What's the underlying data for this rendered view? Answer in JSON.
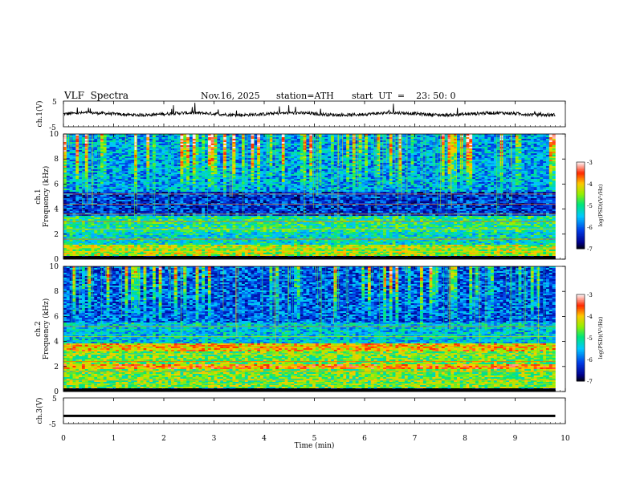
{
  "header": {
    "title": "VLF  Spectra",
    "date": "Nov.16, 2025",
    "station": "station=ATH",
    "start": "start  UT  =    23: 50: 0"
  },
  "chart_data": [
    {
      "type": "line",
      "panel": "ch1-waveform",
      "ylabel": "ch.1(V)",
      "ylim": [
        -5,
        5
      ],
      "xlim": [
        0,
        9.8
      ],
      "yticks": [
        "5",
        "-5"
      ],
      "baseline": 0.0,
      "noise_amplitude": 0.6,
      "spikes_up_to": 3.5
    },
    {
      "type": "heatmap",
      "panel": "ch1-spectrogram",
      "ylabel": "ch.1\nFrequency (kHz)",
      "ylim": [
        0,
        10
      ],
      "yticks": [
        "0",
        "2",
        "4",
        "6",
        "8",
        "10"
      ],
      "xlim": [
        0,
        9.8
      ],
      "colorbar": {
        "label": "log(PSD)(V²/Hz)",
        "range": [
          -7,
          -3
        ],
        "ticks": [
          "-3",
          "-4",
          "-5",
          "-6",
          "-7"
        ]
      },
      "bands_khz": [
        {
          "range": [
            0,
            0.2
          ],
          "level": -7
        },
        {
          "range": [
            0.2,
            1.2
          ],
          "level": -4.4
        },
        {
          "range": [
            1.2,
            2.2
          ],
          "level": -5.2
        },
        {
          "range": [
            2.2,
            3.4
          ],
          "level": -5.0
        },
        {
          "range": [
            3.4,
            5.4
          ],
          "level": -6.2
        },
        {
          "range": [
            5.4,
            10
          ],
          "level": -5.6
        }
      ]
    },
    {
      "type": "heatmap",
      "panel": "ch2-spectrogram",
      "ylabel": "ch.2\nFrequency (kHz)",
      "ylim": [
        0,
        10
      ],
      "yticks": [
        "0",
        "2",
        "4",
        "6",
        "8",
        "10"
      ],
      "xlim": [
        0,
        9.8
      ],
      "colorbar": {
        "label": "log(PSD)(V²/Hz)",
        "range": [
          -7,
          -3
        ],
        "ticks": [
          "-3",
          "-4",
          "-5",
          "-6",
          "-7"
        ]
      },
      "bands_khz": [
        {
          "range": [
            0,
            0.2
          ],
          "level": -7
        },
        {
          "range": [
            0.2,
            1.8
          ],
          "level": -4.6
        },
        {
          "range": [
            1.8,
            2.2
          ],
          "level": -3.8
        },
        {
          "range": [
            2.2,
            3.2
          ],
          "level": -4.6
        },
        {
          "range": [
            3.2,
            3.8
          ],
          "level": -4.0
        },
        {
          "range": [
            3.8,
            5.5
          ],
          "level": -5.4
        },
        {
          "range": [
            5.5,
            10
          ],
          "level": -6.0
        }
      ]
    },
    {
      "type": "line",
      "panel": "ch3-waveform",
      "ylabel": "ch.3(V)",
      "ylim": [
        -5,
        5
      ],
      "xlim": [
        0,
        9.8
      ],
      "yticks": [
        "5",
        "-5"
      ],
      "baseline": -2.0
    }
  ],
  "xaxis": {
    "label": "Time  (min)",
    "range": [
      0,
      10
    ],
    "ticks": [
      "0",
      "1",
      "2",
      "3",
      "4",
      "5",
      "6",
      "7",
      "8",
      "9",
      "10"
    ]
  },
  "colors": {
    "background": "#ffffff",
    "axis": "#000000"
  }
}
